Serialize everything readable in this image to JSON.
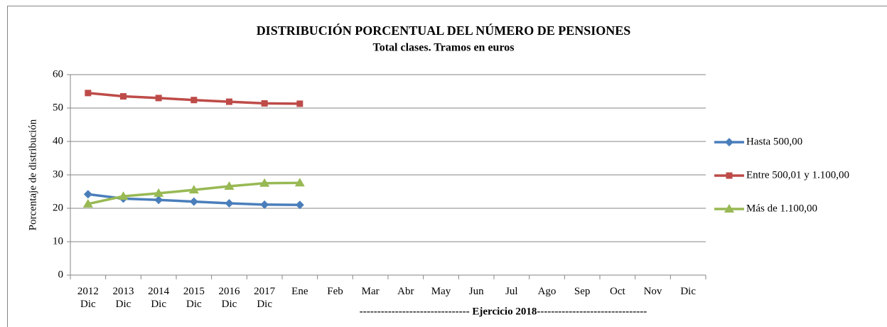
{
  "chart_data": {
    "type": "line",
    "title": "DISTRIBUCIÓN PORCENTUAL DEL NÚMERO DE PENSIONES",
    "subtitle": "Total clases. Tramos en euros",
    "y_label": "Porcentaje de distribución",
    "annotation": "------------------------------- Ejercicio 2018-------------------------------",
    "categories": [
      "2012 Dic",
      "2013 Dic",
      "2014 Dic",
      "2015 Dic",
      "2016 Dic",
      "2017 Dic",
      "Ene",
      "Feb",
      "Mar",
      "Abr",
      "May",
      "Jun",
      "Jul",
      "Ago",
      "Sep",
      "Oct",
      "Nov",
      "Dic"
    ],
    "series": [
      {
        "name": "Hasta 500,00",
        "color": "#4a7ebb",
        "marker": "diamond",
        "values": [
          24.2,
          22.9,
          22.5,
          22.0,
          21.5,
          21.1,
          21.0,
          null,
          null,
          null,
          null,
          null,
          null,
          null,
          null,
          null,
          null,
          null
        ]
      },
      {
        "name": "Entre 500,01 y 1.100,00",
        "color": "#be4b48",
        "marker": "square",
        "values": [
          54.5,
          53.5,
          53.0,
          52.4,
          51.9,
          51.4,
          51.3,
          null,
          null,
          null,
          null,
          null,
          null,
          null,
          null,
          null,
          null,
          null
        ]
      },
      {
        "name": "Más de 1.100,00",
        "color": "#98b954",
        "marker": "triangle",
        "values": [
          21.3,
          23.6,
          24.5,
          25.5,
          26.6,
          27.5,
          27.6,
          null,
          null,
          null,
          null,
          null,
          null,
          null,
          null,
          null,
          null,
          null
        ]
      }
    ],
    "ylim": [
      0,
      60
    ],
    "yticks": [
      0,
      10,
      20,
      30,
      40,
      50,
      60
    ],
    "grid": true,
    "legend": "right"
  }
}
